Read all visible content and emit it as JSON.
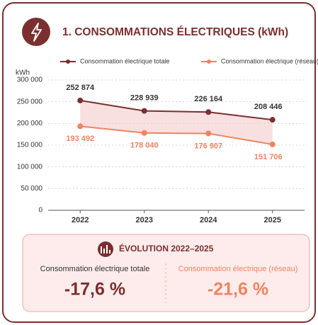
{
  "chart_data": {
    "type": "line",
    "title": "1. CONSOMMATIONS ÉLECTRIQUES (kWh)",
    "ylabel": "kWh",
    "categories": [
      "2022",
      "2023",
      "2024",
      "2025"
    ],
    "series": [
      {
        "name": "Consommation électrique totale",
        "color": "#7b2f2f",
        "values": [
          252874,
          228939,
          226164,
          208446
        ],
        "value_labels": [
          "252 874",
          "228 939",
          "226 164",
          "208 446"
        ]
      },
      {
        "name": "Consommation électrique (réseau)",
        "color": "#ee8460",
        "values": [
          193492,
          178040,
          176907,
          151706
        ],
        "value_labels": [
          "193 492",
          "178 040",
          "176 907",
          "151 706"
        ]
      }
    ],
    "ylim": [
      0,
      300000
    ],
    "yticks": [
      0,
      {
        "value": 50000,
        "label": "50 000"
      },
      {
        "value": 100000,
        "label": "100 000"
      },
      {
        "value": 150000,
        "label": "150 000"
      },
      {
        "value": 200000,
        "label": "200 000"
      },
      {
        "value": 250000,
        "label": "250 000"
      },
      {
        "value": 300000,
        "label": "300 000"
      }
    ],
    "grid": true,
    "legend": "top",
    "fill_between": true
  },
  "evolution": {
    "title": "ÉVOLUTION 2022–2025",
    "items": [
      {
        "label": "Consommation électrique totale",
        "value": "-17,6 %"
      },
      {
        "label": "Consommation électrique (réseau)",
        "value": "-21,6 %"
      }
    ]
  }
}
